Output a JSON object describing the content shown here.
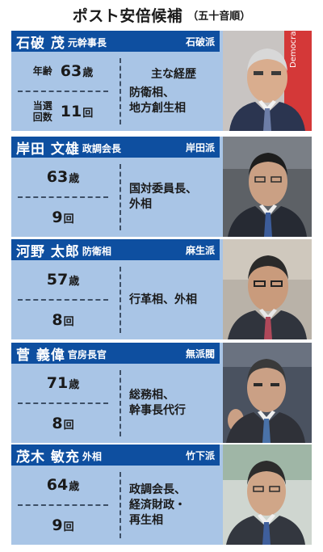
{
  "title": {
    "main": "ポスト安倍候補",
    "sub": "（五十音順）"
  },
  "labels": {
    "age_label": "年齢",
    "elect_label_1": "当選",
    "elect_label_2": "回数",
    "career_heading": "主な経歴"
  },
  "candidates": [
    {
      "name": "石破 茂",
      "post": "元幹事長",
      "faction": "石破派",
      "age": "63",
      "age_unit": "歳",
      "elected": "11",
      "elected_unit": "回",
      "career": [
        "防衛相、",
        "地方創生相"
      ]
    },
    {
      "name": "岸田 文雄",
      "post": "政調会長",
      "faction": "岸田派",
      "age": "63",
      "age_unit": "歳",
      "elected": "9",
      "elected_unit": "回",
      "career": [
        "国対委員長、",
        "外相"
      ]
    },
    {
      "name": "河野 太郎",
      "post": "防衛相",
      "faction": "麻生派",
      "age": "57",
      "age_unit": "歳",
      "elected": "8",
      "elected_unit": "回",
      "career": [
        "行革相、外相"
      ]
    },
    {
      "name": "菅 義偉",
      "post": "官房長官",
      "faction": "無派閥",
      "age": "71",
      "age_unit": "歳",
      "elected": "8",
      "elected_unit": "回",
      "career": [
        "総務相、",
        "幹事長代行"
      ]
    },
    {
      "name": "茂木 敏充",
      "post": "外相",
      "faction": "竹下派",
      "age": "64",
      "age_unit": "歳",
      "elected": "9",
      "elected_unit": "回",
      "career": [
        "政調会長、",
        "経済財政・",
        "再生相"
      ]
    }
  ],
  "photo_background": "Democrat",
  "colors": {
    "header": "#0e4fa0",
    "panel": "#a9c5e6",
    "text": "#1a1a1a"
  }
}
